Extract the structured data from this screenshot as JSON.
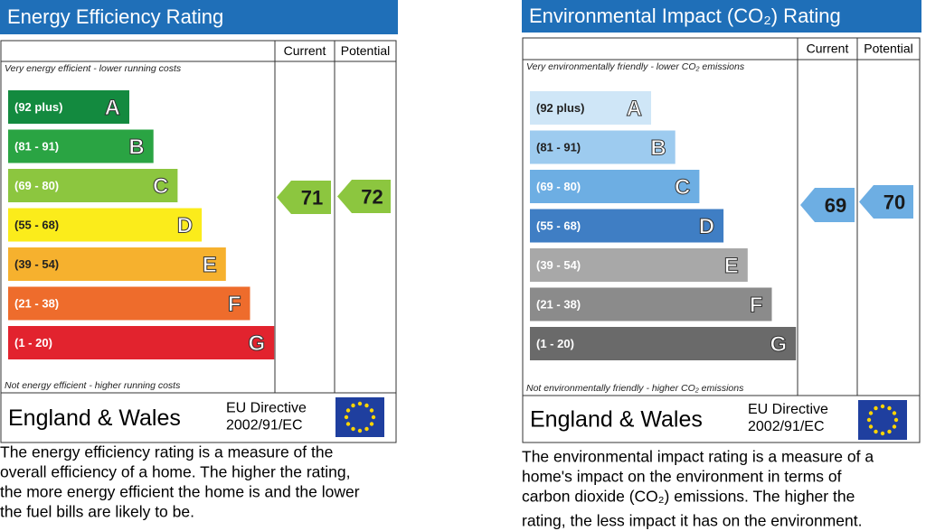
{
  "panels": [
    {
      "title": "Energy Efficiency Rating",
      "columns": [
        "Current",
        "Potential"
      ],
      "top_note": "Very energy efficient - lower running costs",
      "bands": [
        {
          "range": "(92 plus)",
          "letter": "A",
          "color": "#138a3f"
        },
        {
          "range": "(81 - 91)",
          "letter": "B",
          "color": "#2aa443"
        },
        {
          "range": "(69 - 80)",
          "letter": "C",
          "color": "#8cc63f"
        },
        {
          "range": "(55 - 68)",
          "letter": "D",
          "color": "#fbec1b"
        },
        {
          "range": "(39 - 54)",
          "letter": "E",
          "color": "#f6b12e"
        },
        {
          "range": "(21 - 38)",
          "letter": "F",
          "color": "#ee6c2c"
        },
        {
          "range": "(1 - 20)",
          "letter": "G",
          "color": "#e2232e"
        }
      ],
      "bottom_note": "Not energy efficient - higher running costs",
      "region": "England & Wales",
      "directive": [
        "EU Directive",
        "2002/91/EC"
      ],
      "current": {
        "value": 71,
        "color": "#8cc63f"
      },
      "potential": {
        "value": 72,
        "color": "#8cc63f"
      },
      "description": [
        "The energy efficiency rating is a measure of the",
        "overall efficiency of a home. The higher the rating,",
        "the more energy efficient the home is and the lower",
        "the fuel bills are likely to be."
      ]
    },
    {
      "title": "Environmental Impact (CO₂) Rating",
      "columns": [
        "Current",
        "Potential"
      ],
      "top_note": "Very environmentally friendly - lower CO₂ emissions",
      "bands": [
        {
          "range": "(92 plus)",
          "letter": "A",
          "color": "#cfe6f7"
        },
        {
          "range": "(81 - 91)",
          "letter": "B",
          "color": "#9dcbef"
        },
        {
          "range": "(69 - 80)",
          "letter": "C",
          "color": "#6daee3"
        },
        {
          "range": "(55 - 68)",
          "letter": "D",
          "color": "#3f7ec4"
        },
        {
          "range": "(39 - 54)",
          "letter": "E",
          "color": "#a8a8a8"
        },
        {
          "range": "(21 - 38)",
          "letter": "F",
          "color": "#8b8b8b"
        },
        {
          "range": "(1 - 20)",
          "letter": "G",
          "color": "#6a6a6a"
        }
      ],
      "bottom_note": "Not environmentally friendly - higher CO₂ emissions",
      "region": "England & Wales",
      "directive": [
        "EU Directive",
        "2002/91/EC"
      ],
      "current": {
        "value": 69,
        "color": "#6daee3"
      },
      "potential": {
        "value": 70,
        "color": "#6daee3"
      },
      "description": [
        "The environmental impact rating is a measure of a",
        "home's impact on the environment in terms of",
        "carbon dioxide (CO₂) emissions. The higher the",
        "rating, the less impact it has on the environment."
      ]
    }
  ]
}
